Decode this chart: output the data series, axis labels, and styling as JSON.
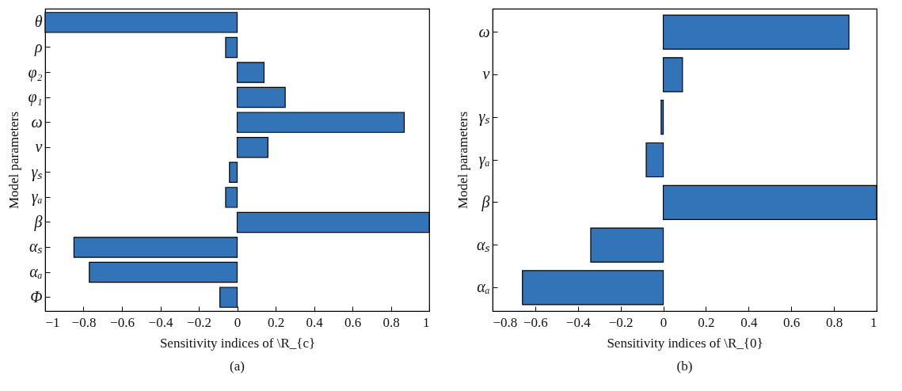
{
  "chart_data": [
    {
      "type": "bar",
      "orientation": "horizontal",
      "categories": [
        "θ",
        "ρ",
        "φ₂",
        "φ₁",
        "ω",
        "ν",
        "γₛ",
        "γₐ",
        "β",
        "αₛ",
        "αₐ",
        "Φ"
      ],
      "values": [
        -1,
        -0.06,
        0.14,
        0.25,
        0.87,
        0.16,
        -0.04,
        -0.06,
        1,
        -0.85,
        -0.77,
        -0.09
      ],
      "color": "#3274b7",
      "xlim": [
        -1,
        1
      ],
      "xticks": [
        {
          "value": -1,
          "label": "−1"
        },
        {
          "value": -0.8,
          "label": "−0.8"
        },
        {
          "value": -0.6,
          "label": "−0.6"
        },
        {
          "value": -0.4,
          "label": "−0.4"
        },
        {
          "value": -0.2,
          "label": "−0.2"
        },
        0,
        0.2,
        0.4,
        0.6,
        0.8,
        1
      ],
      "xlabel": "Sensitivity indices of \\R_{c}",
      "ylabel": "Model parameters",
      "annotations": [
        "(a)"
      ],
      "grid": false
    },
    {
      "type": "bar",
      "orientation": "horizontal",
      "categories": [
        "ω",
        "ν",
        "γₛ",
        "γₐ",
        "β",
        "αₛ",
        "αₐ"
      ],
      "values": [
        0.87,
        0.09,
        -0.01,
        -0.08,
        1,
        -0.34,
        -0.66
      ],
      "color": "#3274b7",
      "xlim": [
        -0.8,
        1
      ],
      "xticks": [
        {
          "value": -0.8,
          "label": "−0.8"
        },
        {
          "value": -0.6,
          "label": "−0.6"
        },
        {
          "value": -0.4,
          "label": "−0.4"
        },
        {
          "value": -0.2,
          "label": "−0.2"
        },
        0,
        0.2,
        0.4,
        0.6,
        0.8,
        1
      ],
      "xlabel": "Sensitivity indices of \\R_{0}",
      "ylabel": "Model parameters",
      "annotations": [
        "(b)"
      ],
      "grid": false
    }
  ]
}
